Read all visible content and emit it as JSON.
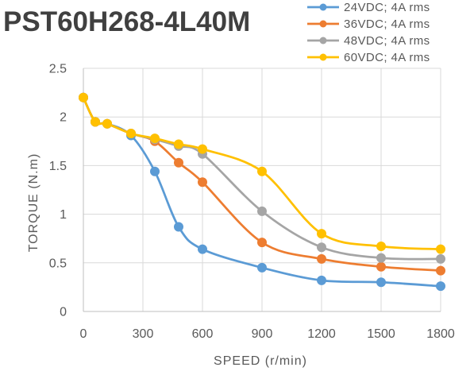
{
  "chart_data": {
    "type": "line",
    "title": "PST60H268-4L40M",
    "xlabel": "SPEED (r/min)",
    "ylabel": "TORQUE (N.m)",
    "xlim": [
      0,
      1800
    ],
    "ylim": [
      0,
      2.5
    ],
    "x_ticks": [
      "0",
      "300",
      "600",
      "900",
      "1200",
      "1500",
      "1800"
    ],
    "y_ticks": [
      "0",
      "0.5",
      "1",
      "1.5",
      "2",
      "2.5"
    ],
    "grid": true,
    "smooth": true,
    "legend": "top-right",
    "series": [
      {
        "name": "24VDC; 4A rms",
        "color": "#5B9BD5",
        "x": [
          0,
          60,
          120,
          240,
          360,
          480,
          600,
          900,
          1200,
          1500,
          1800
        ],
        "y": [
          2.2,
          1.95,
          1.93,
          1.81,
          1.44,
          0.87,
          0.64,
          0.45,
          0.32,
          0.3,
          0.26
        ]
      },
      {
        "name": "36VDC; 4A rms",
        "color": "#ED7D31",
        "x": [
          0,
          60,
          120,
          240,
          360,
          480,
          600,
          900,
          1200,
          1500,
          1800
        ],
        "y": [
          2.2,
          1.95,
          1.93,
          1.83,
          1.75,
          1.53,
          1.33,
          0.71,
          0.54,
          0.46,
          0.42
        ]
      },
      {
        "name": "48VDC; 4A rms",
        "color": "#A5A5A5",
        "x": [
          0,
          60,
          120,
          240,
          360,
          480,
          600,
          900,
          1200,
          1500,
          1800
        ],
        "y": [
          2.2,
          1.95,
          1.93,
          1.83,
          1.77,
          1.7,
          1.62,
          1.03,
          0.66,
          0.55,
          0.54
        ]
      },
      {
        "name": "60VDC; 4A rms",
        "color": "#FFC000",
        "x": [
          0,
          60,
          120,
          240,
          360,
          480,
          600,
          900,
          1200,
          1500,
          1800
        ],
        "y": [
          2.2,
          1.95,
          1.93,
          1.83,
          1.78,
          1.72,
          1.67,
          1.44,
          0.8,
          0.67,
          0.64
        ]
      }
    ]
  }
}
